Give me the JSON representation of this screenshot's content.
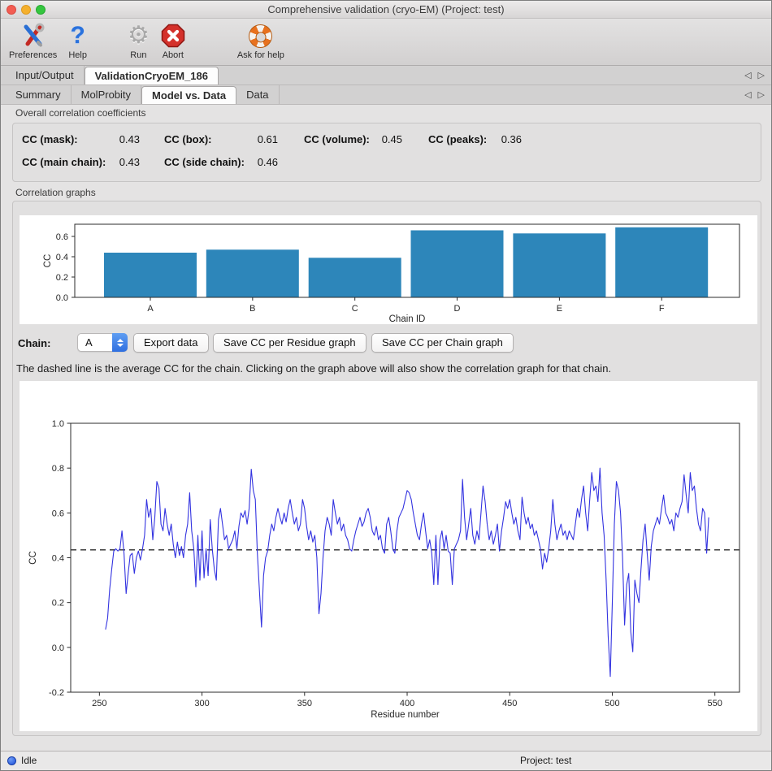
{
  "window": {
    "title": "Comprehensive validation (cryo-EM) (Project: test)"
  },
  "toolbar": {
    "items": [
      {
        "label": "Preferences",
        "icon": "tools-icon"
      },
      {
        "label": "Help",
        "icon": "question-mark-icon"
      },
      {
        "label": "Run",
        "icon": "gear-icon"
      },
      {
        "label": "Abort",
        "icon": "stop-octagon-icon"
      },
      {
        "label": "Ask for help",
        "icon": "lifebuoy-icon"
      }
    ]
  },
  "tabs_main": {
    "items": [
      "Input/Output",
      "ValidationCryoEM_186"
    ],
    "selected": "ValidationCryoEM_186"
  },
  "tabs_sub": {
    "items": [
      "Summary",
      "MolProbity",
      "Model vs. Data",
      "Data"
    ],
    "selected": "Model vs. Data"
  },
  "overall_cc": {
    "section_label": "Overall correlation coefficients",
    "items": [
      {
        "label": "CC (mask):",
        "value": "0.43"
      },
      {
        "label": "CC (box):",
        "value": "0.61"
      },
      {
        "label": "CC (volume):",
        "value": "0.45"
      },
      {
        "label": "CC (peaks):",
        "value": "0.36"
      },
      {
        "label": "CC (main chain):",
        "value": "0.43"
      },
      {
        "label": "CC (side chain):",
        "value": "0.46"
      }
    ]
  },
  "correlation_graphs": {
    "section_label": "Correlation graphs"
  },
  "chain_controls": {
    "chain_label": "Chain:",
    "selected_chain": "A",
    "buttons": [
      {
        "label": "Export data"
      },
      {
        "label": "Save CC per Residue graph"
      },
      {
        "label": "Save CC per Chain graph"
      }
    ]
  },
  "note": "The dashed line is the average CC for the chain. Clicking on the graph above will also show the correlation graph for that chain.",
  "status_bar": {
    "status": "Idle",
    "project": "Project: test"
  },
  "chart_data": [
    {
      "type": "bar",
      "title": "CC per chain",
      "categories": [
        "A",
        "B",
        "C",
        "D",
        "E",
        "F"
      ],
      "values": [
        0.44,
        0.47,
        0.39,
        0.66,
        0.63,
        0.69
      ],
      "xlabel": "Chain ID",
      "ylabel": "CC",
      "ylim": [
        0,
        0.72
      ],
      "yticks": [
        0.0,
        0.2,
        0.4,
        0.6
      ],
      "bar_color": "#2d86ba",
      "grid": false,
      "legend": "none"
    },
    {
      "type": "line",
      "title": "CC per residue (chain A)",
      "xlabel": "Residue number",
      "ylabel": "CC",
      "xlim": [
        236,
        562
      ],
      "ylim": [
        -0.2,
        1.0
      ],
      "xticks": [
        250,
        300,
        350,
        400,
        450,
        500,
        550
      ],
      "yticks": [
        -0.2,
        0.0,
        0.2,
        0.4,
        0.6,
        0.8,
        1.0
      ],
      "line_color": "#3333e0",
      "average_cc": 0.435,
      "average_line_style": "dashed-black",
      "grid": false,
      "legend": "none",
      "x_start": 253,
      "values": [
        0.08,
        0.13,
        0.26,
        0.35,
        0.43,
        0.44,
        0.43,
        0.44,
        0.52,
        0.42,
        0.24,
        0.33,
        0.41,
        0.42,
        0.33,
        0.4,
        0.43,
        0.39,
        0.44,
        0.5,
        0.66,
        0.58,
        0.62,
        0.48,
        0.58,
        0.74,
        0.71,
        0.55,
        0.52,
        0.62,
        0.55,
        0.5,
        0.55,
        0.46,
        0.4,
        0.47,
        0.41,
        0.45,
        0.4,
        0.5,
        0.55,
        0.69,
        0.52,
        0.44,
        0.27,
        0.5,
        0.3,
        0.52,
        0.31,
        0.44,
        0.32,
        0.57,
        0.44,
        0.35,
        0.3,
        0.57,
        0.62,
        0.55,
        0.48,
        0.5,
        0.44,
        0.46,
        0.48,
        0.52,
        0.44,
        0.54,
        0.6,
        0.58,
        0.61,
        0.55,
        0.62,
        0.795,
        0.7,
        0.66,
        0.42,
        0.25,
        0.09,
        0.32,
        0.4,
        0.43,
        0.5,
        0.55,
        0.52,
        0.58,
        0.62,
        0.58,
        0.55,
        0.6,
        0.56,
        0.62,
        0.66,
        0.6,
        0.55,
        0.58,
        0.52,
        0.55,
        0.66,
        0.62,
        0.54,
        0.48,
        0.52,
        0.47,
        0.5,
        0.4,
        0.15,
        0.24,
        0.4,
        0.52,
        0.58,
        0.55,
        0.5,
        0.66,
        0.6,
        0.55,
        0.58,
        0.52,
        0.55,
        0.5,
        0.48,
        0.44,
        0.43,
        0.48,
        0.52,
        0.55,
        0.58,
        0.54,
        0.56,
        0.6,
        0.62,
        0.58,
        0.52,
        0.5,
        0.54,
        0.48,
        0.5,
        0.44,
        0.42,
        0.55,
        0.58,
        0.52,
        0.44,
        0.42,
        0.52,
        0.58,
        0.6,
        0.62,
        0.66,
        0.7,
        0.69,
        0.66,
        0.6,
        0.55,
        0.5,
        0.48,
        0.55,
        0.6,
        0.52,
        0.44,
        0.48,
        0.42,
        0.28,
        0.5,
        0.28,
        0.48,
        0.52,
        0.44,
        0.5,
        0.43,
        0.42,
        0.28,
        0.44,
        0.46,
        0.48,
        0.52,
        0.75,
        0.58,
        0.48,
        0.55,
        0.62,
        0.5,
        0.46,
        0.52,
        0.48,
        0.6,
        0.72,
        0.65,
        0.55,
        0.48,
        0.52,
        0.46,
        0.5,
        0.55,
        0.43,
        0.52,
        0.58,
        0.65,
        0.62,
        0.66,
        0.6,
        0.55,
        0.58,
        0.52,
        0.48,
        0.67,
        0.6,
        0.55,
        0.58,
        0.53,
        0.55,
        0.5,
        0.52,
        0.48,
        0.44,
        0.35,
        0.42,
        0.38,
        0.44,
        0.52,
        0.66,
        0.55,
        0.48,
        0.52,
        0.55,
        0.5,
        0.52,
        0.48,
        0.52,
        0.5,
        0.48,
        0.55,
        0.62,
        0.58,
        0.66,
        0.72,
        0.6,
        0.52,
        0.66,
        0.78,
        0.7,
        0.72,
        0.65,
        0.8,
        0.6,
        0.5,
        0.3,
        0.05,
        -0.13,
        0.2,
        0.55,
        0.74,
        0.7,
        0.6,
        0.4,
        0.1,
        0.28,
        0.33,
        0.07,
        -0.02,
        0.3,
        0.24,
        0.2,
        0.35,
        0.48,
        0.55,
        0.42,
        0.3,
        0.45,
        0.52,
        0.55,
        0.58,
        0.55,
        0.62,
        0.68,
        0.6,
        0.58,
        0.55,
        0.57,
        0.52,
        0.6,
        0.58,
        0.62,
        0.65,
        0.77,
        0.68,
        0.6,
        0.78,
        0.7,
        0.72,
        0.62,
        0.55,
        0.52,
        0.62,
        0.6,
        0.42,
        0.58
      ]
    }
  ]
}
